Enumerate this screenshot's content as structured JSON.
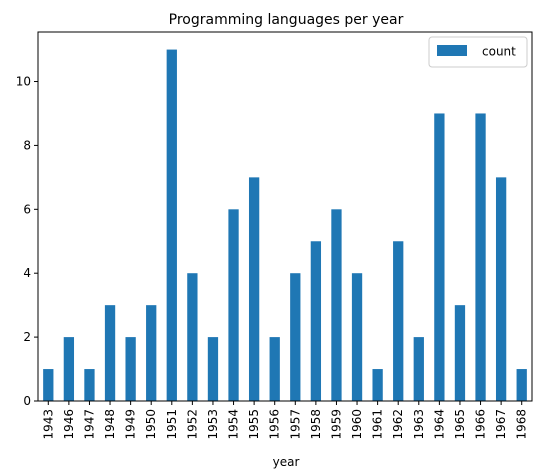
{
  "chart_data": {
    "type": "bar",
    "title": "Programming languages per year",
    "xlabel": "year",
    "ylabel": "",
    "categories": [
      "1943",
      "1946",
      "1947",
      "1948",
      "1949",
      "1950",
      "1951",
      "1952",
      "1953",
      "1954",
      "1955",
      "1956",
      "1957",
      "1958",
      "1959",
      "1960",
      "1961",
      "1962",
      "1963",
      "1964",
      "1965",
      "1966",
      "1967",
      "1968"
    ],
    "series": [
      {
        "name": "count",
        "values": [
          1,
          2,
          1,
          3,
          2,
          3,
          11,
          4,
          2,
          6,
          7,
          2,
          4,
          5,
          6,
          4,
          1,
          5,
          2,
          9,
          3,
          9,
          7,
          1
        ]
      }
    ],
    "ylim": [
      0,
      11.55
    ],
    "yticks": [
      0,
      2,
      4,
      6,
      8,
      10
    ],
    "legend": {
      "position": "top-right"
    },
    "grid": false,
    "colors": {
      "bar": "#1f77b4",
      "axis": "#000000",
      "background": "#ffffff"
    }
  }
}
